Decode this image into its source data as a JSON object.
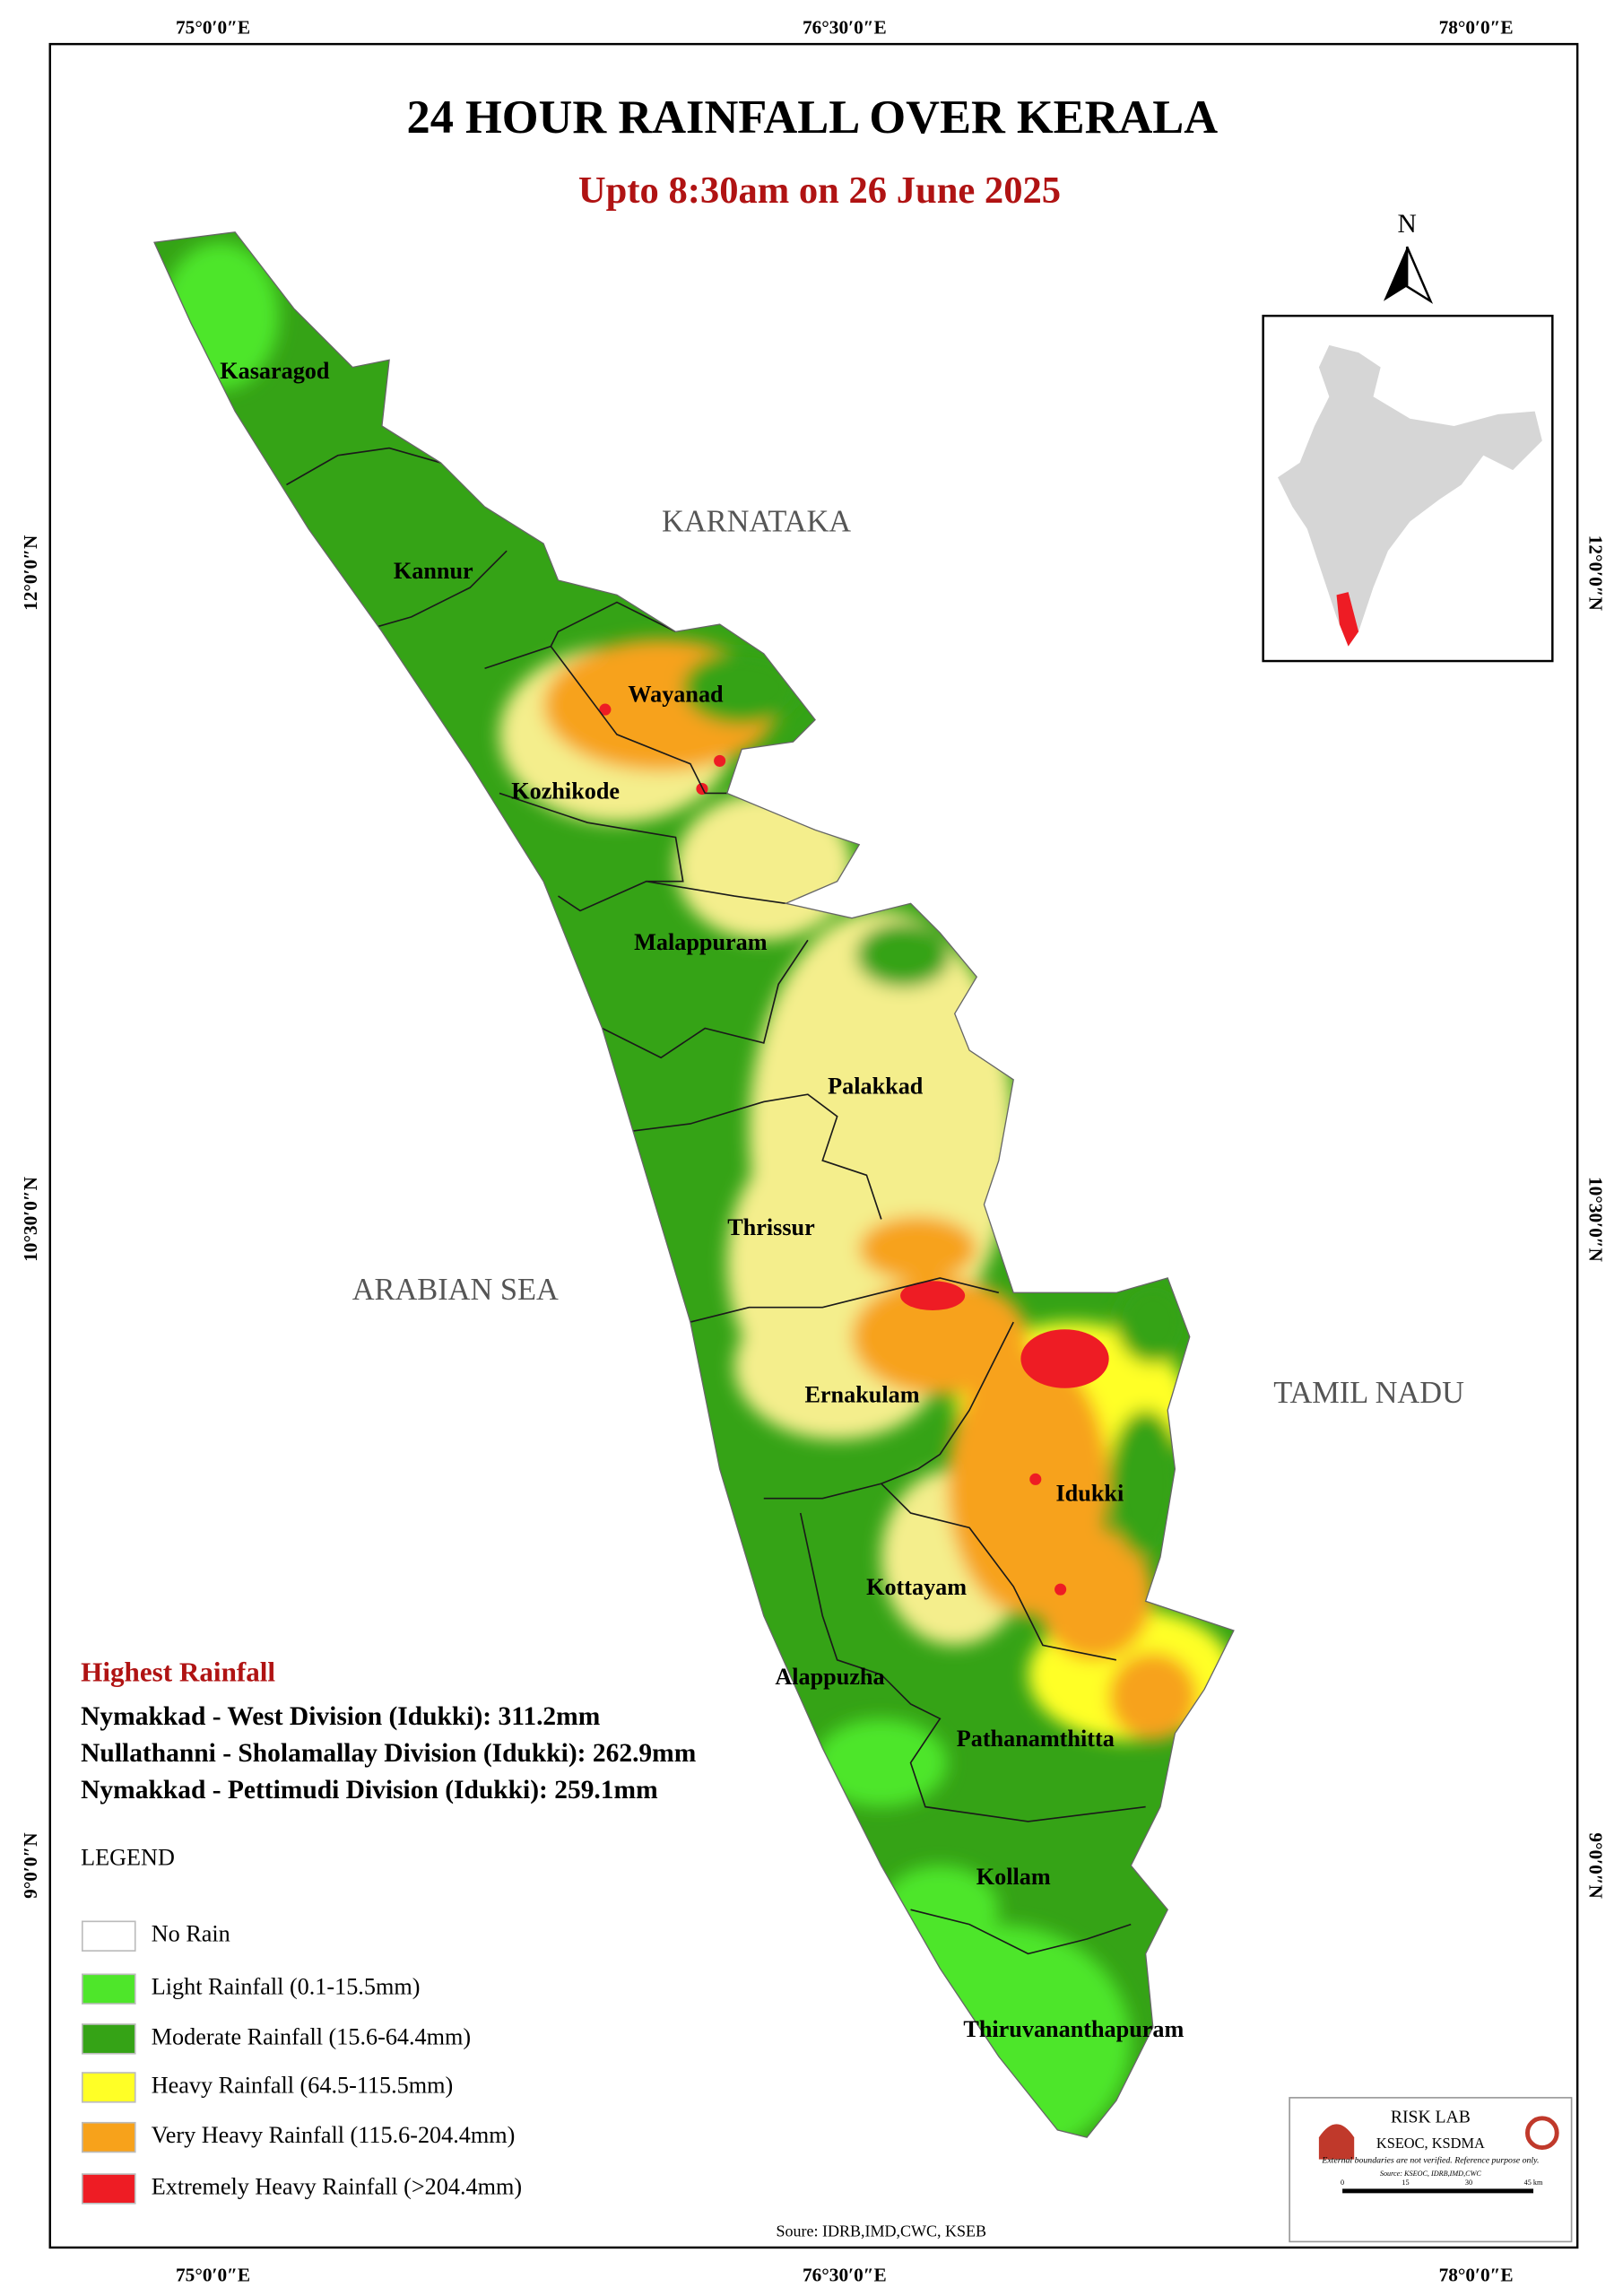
{
  "title": "24 HOUR RAINFALL OVER KERALA",
  "subtitle": "Upto 8:30am on 26 June 2025",
  "graticule": {
    "top": [
      "75°0′0″E",
      "76°30′0″E",
      "78°0′0″E"
    ],
    "bottom": [
      "75°0′0″E",
      "76°30′0″E",
      "78°0′0″E"
    ],
    "left": [
      "12°0′0″N",
      "10°30′0″N",
      "9°0′0″N"
    ],
    "right": [
      "12°0′0″N",
      "10°30′0″N",
      "9°0′0″N"
    ]
  },
  "regions": [
    "KARNATAKA",
    "ARABIAN SEA",
    "TAMIL NADU"
  ],
  "districts": [
    "Kasaragod",
    "Kannur",
    "Wayanad",
    "Kozhikode",
    "Malappuram",
    "Palakkad",
    "Thrissur",
    "Ernakulam",
    "Idukki",
    "Kottayam",
    "Alappuzha",
    "Pathanamthitta",
    "Kollam",
    "Thiruvananthapuram"
  ],
  "north": "N",
  "highest_rainfall": {
    "heading": "Highest Rainfall",
    "items": [
      "Nymakkad - West Division (Idukki): 311.2mm",
      "Nullathanni - Sholamallay Division (Idukki): 262.9mm",
      "Nymakkad - Pettimudi Division (Idukki): 259.1mm"
    ]
  },
  "legend": {
    "title": "LEGEND",
    "items": [
      {
        "label": "No Rain",
        "color": "#ffffff"
      },
      {
        "label": " Light Rainfall (0.1-15.5mm)",
        "color": "#4ee62a"
      },
      {
        "label": "Moderate Rainfall (15.6-64.4mm)",
        "color": "#35a316"
      },
      {
        "label": "Heavy Rainfall (64.5-115.5mm)",
        "color": "#ffff26"
      },
      {
        "label": "Very Heavy Rainfall (115.6-204.4mm)",
        "color": "#f7a21b"
      },
      {
        "label": "Extremely Heavy Rainfall (>204.4mm)",
        "color": "#ee1c24"
      }
    ]
  },
  "credit": {
    "title": "RISK LAB",
    "org": "KSEOC, KSDMA",
    "note": "External boundaries are not verified. Reference purpose only.",
    "source": "Source: KSEOC, IDRB,IMD,CWC",
    "scale": [
      "0",
      "15",
      "30",
      "45 km"
    ]
  },
  "source": "Soure: IDRB,IMD,CWC, KSEB"
}
